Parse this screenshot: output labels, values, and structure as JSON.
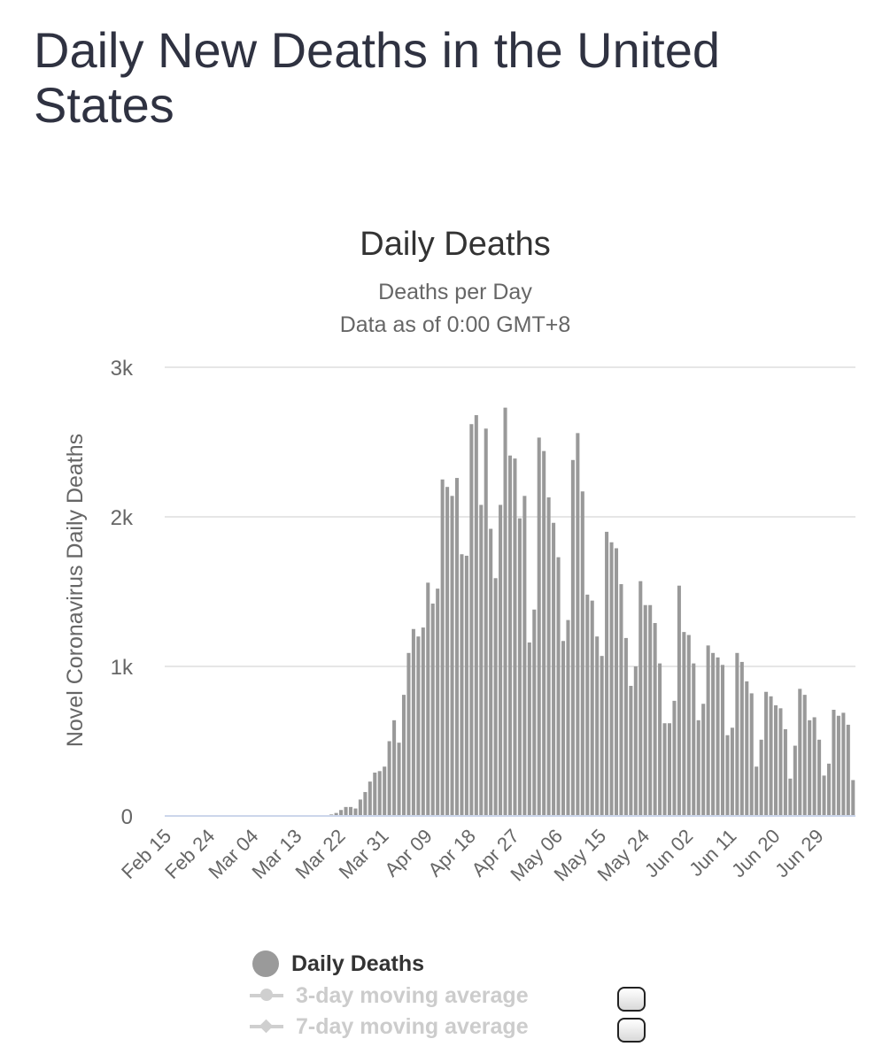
{
  "page": {
    "title": "Daily New Deaths in the United States"
  },
  "chart_data": {
    "type": "bar",
    "title": "Daily Deaths",
    "subtitle": [
      "Deaths per Day",
      "Data as of 0:00 GMT+8"
    ],
    "ylabel": "Novel Coronavirus Daily Deaths",
    "xlabel": "",
    "ylim": [
      0,
      3000
    ],
    "yticks": [
      {
        "value": 0,
        "label": "0"
      },
      {
        "value": 1000,
        "label": "1k"
      },
      {
        "value": 2000,
        "label": "2k"
      },
      {
        "value": 3000,
        "label": "3k"
      }
    ],
    "x_start": "Feb 15",
    "x_ticks": [
      "Feb 15",
      "Feb 24",
      "Mar 04",
      "Mar 13",
      "Mar 22",
      "Mar 31",
      "Apr 09",
      "Apr 18",
      "Apr 27",
      "May 06",
      "May 15",
      "May 24",
      "Jun 02",
      "Jun 11",
      "Jun 20",
      "Jun 29"
    ],
    "grid": true,
    "color": "#999999",
    "series": [
      {
        "name": "Daily Deaths",
        "values": [
          0,
          0,
          0,
          0,
          0,
          0,
          0,
          0,
          0,
          0,
          0,
          0,
          0,
          0,
          0,
          0,
          0,
          0,
          0,
          0,
          0,
          0,
          0,
          0,
          0,
          0,
          0,
          0,
          0,
          0,
          0,
          0,
          0,
          0,
          10,
          20,
          40,
          60,
          60,
          50,
          110,
          160,
          230,
          290,
          300,
          330,
          500,
          640,
          490,
          810,
          1090,
          1250,
          1200,
          1260,
          1560,
          1420,
          1520,
          2250,
          2200,
          2140,
          2260,
          1750,
          1740,
          2620,
          2680,
          2080,
          2590,
          1920,
          1590,
          2080,
          2730,
          2410,
          2390,
          1990,
          2140,
          1160,
          1380,
          2530,
          2440,
          2130,
          1960,
          1730,
          1170,
          1310,
          2380,
          2560,
          2170,
          1480,
          1440,
          1200,
          1070,
          1900,
          1830,
          1790,
          1550,
          1190,
          870,
          1000,
          1570,
          1410,
          1410,
          1290,
          1020,
          620,
          620,
          770,
          1540,
          1230,
          1210,
          1020,
          640,
          750,
          1140,
          1090,
          1060,
          1010,
          540,
          590,
          1090,
          1030,
          900,
          820,
          330,
          510,
          830,
          800,
          740,
          720,
          580,
          250,
          470,
          850,
          810,
          640,
          660,
          510,
          270,
          350,
          710,
          670,
          690,
          610,
          240
        ]
      }
    ],
    "legend": [
      {
        "label": "Daily Deaths",
        "marker": "circle",
        "enabled": true
      },
      {
        "label": "3-day moving average",
        "marker": "line-circle",
        "enabled": false
      },
      {
        "label": "7-day moving average",
        "marker": "line-diamond",
        "enabled": false
      }
    ],
    "legend_colors": {
      "active": "#333333",
      "inactive": "#cccccc"
    }
  }
}
